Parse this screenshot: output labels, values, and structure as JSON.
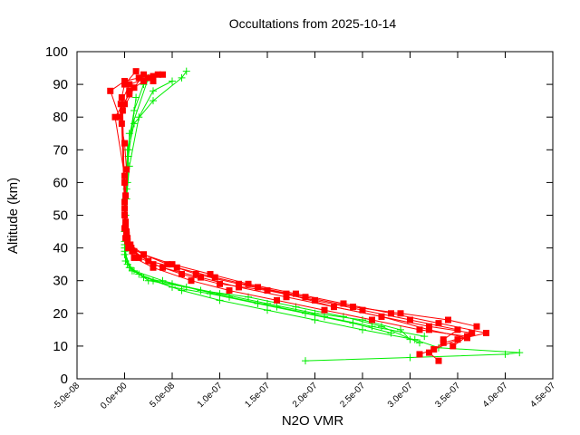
{
  "chart_data": {
    "type": "line",
    "title": "Occultations from 2025-10-14",
    "xlabel": "N2O VMR",
    "ylabel": "Altitude (km)",
    "xlim": [
      -5e-08,
      4.5e-07
    ],
    "ylim": [
      0,
      100
    ],
    "grid": false,
    "legend": "none",
    "xticks": [
      -5e-08,
      0,
      5e-08,
      1e-07,
      1.5e-07,
      2e-07,
      2.5e-07,
      3e-07,
      3.5e-07,
      4e-07,
      4.5e-07
    ],
    "xtick_labels": [
      "-5.0e-08",
      "0.0e+00",
      "5.0e-08",
      "1.0e-07",
      "1.5e-07",
      "2.0e-07",
      "2.5e-07",
      "3.0e-07",
      "3.5e-07",
      "4.0e-07",
      "4.5e-07"
    ],
    "yticks": [
      0,
      10,
      20,
      30,
      40,
      50,
      60,
      70,
      80,
      90,
      100
    ],
    "ytick_labels": [
      "0",
      "10",
      "20",
      "30",
      "40",
      "50",
      "60",
      "70",
      "80",
      "90",
      "100"
    ],
    "series": [
      {
        "color": "#00ee00",
        "marker": "plus",
        "profiles": [
          {
            "x": [
              1.9e-07,
              3e-07,
              4e-07,
              4.15e-07,
              3.3e-07,
              3.05e-07,
              2.5e-07,
              2e-07,
              1.5e-07,
              1e-07,
              6e-08,
              3e-08,
              8e-09,
              1e-09,
              0.0,
              0.0,
              1e-09,
              2e-09,
              3e-09,
              4e-09,
              1e-08,
              3e-08,
              6e-08,
              6.5e-08
            ],
            "y": [
              5.5,
              6.5,
              7.5,
              8.0,
              9.5,
              12,
              15,
              18,
              21,
              24,
              27,
              30,
              33,
              36,
              40,
              45,
              50,
              55,
              60,
              70,
              78,
              85,
              92,
              94
            ]
          },
          {
            "x": [
              3e-07,
              2.9e-07,
              2.5e-07,
              2e-07,
              1.5e-07,
              1e-07,
              5e-08,
              2e-08,
              5e-09,
              0.0,
              1e-09,
              2e-09,
              5e-09,
              1.5e-08,
              3e-08,
              5e-08
            ],
            "y": [
              12,
              15,
              18,
              20,
              23,
              26,
              29,
              31,
              34,
              38,
              45,
              55,
              65,
              80,
              88,
              91
            ]
          },
          {
            "x": [
              3.1e-07,
              2.7e-07,
              2.3e-07,
              1.8e-07,
              1.3e-07,
              8e-08,
              4e-08,
              1e-08,
              1e-09,
              0.0,
              1e-09,
              3e-09,
              1e-08,
              2e-08
            ],
            "y": [
              11,
              16,
              19,
              22,
              25,
              27,
              30,
              33,
              36,
              42,
              55,
              70,
              82,
              90
            ]
          },
          {
            "x": [
              2.8e-07,
              2.4e-07,
              1.9e-07,
              1.4e-07,
              9e-08,
              5e-08,
              1.5e-08,
              3e-09,
              0.0,
              2e-09,
              5e-09,
              2.5e-08
            ],
            "y": [
              14,
              17,
              20,
              23,
              26,
              28,
              32,
              35,
              41,
              58,
              75,
              92
            ]
          },
          {
            "x": [
              3.15e-07,
              2.6e-07,
              2.1e-07,
              1.6e-07,
              1.1e-07,
              6.5e-08,
              2.5e-08,
              6e-09,
              0.0,
              1e-09,
              4e-09,
              1.2e-08
            ],
            "y": [
              13,
              16,
              19,
              22,
              25,
              28,
              30,
              34,
              39,
              50,
              68,
              86
            ]
          }
        ]
      },
      {
        "color": "#ff0000",
        "marker": "square",
        "profiles": [
          {
            "x": [
              3.3e-07,
              3.2e-07,
              3.35e-07,
              3.6e-07,
              3.1e-07,
              2.6e-07,
              2.1e-07,
              1.6e-07,
              1.1e-07,
              7e-08,
              3e-08,
              1e-08,
              4e-09,
              1e-09,
              0.0,
              0.0,
              1e-09,
              2e-09,
              0.0,
              -5e-09,
              0.0,
              5e-09,
              2e-08,
              3.5e-08
            ],
            "y": [
              5.5,
              8,
              11,
              13,
              15,
              18,
              21,
              24,
              27,
              30,
              34,
              37,
              40,
              43,
              46,
              50,
              56,
              64,
              72,
              80,
              84,
              88,
              91,
              93
            ]
          },
          {
            "x": [
              3.1e-07,
              3.25e-07,
              3.5e-07,
              3.8e-07,
              3.3e-07,
              2.8e-07,
              2.3e-07,
              1.8e-07,
              1.3e-07,
              9e-08,
              5e-08,
              2e-08,
              6e-09,
              2e-09,
              1e-09,
              0.0,
              -3e-09,
              -1.5e-08,
              0.0,
              1.5e-08,
              3e-08,
              4e-08
            ],
            "y": [
              7.5,
              9,
              12,
              14,
              17,
              20,
              23,
              26,
              29,
              32,
              35,
              38,
              41,
              44,
              47,
              52,
              78,
              88,
              91,
              92,
              92.5,
              93
            ]
          },
          {
            "x": [
              3.45e-07,
              3.65e-07,
              3.2e-07,
              2.7e-07,
              2.2e-07,
              1.7e-07,
              1.2e-07,
              8e-08,
              4e-08,
              1.5e-08,
              5e-09,
              2e-09,
              0.0,
              0.0,
              -4e-09,
              5e-09,
              2.5e-08,
              3e-08
            ],
            "y": [
              10,
              14,
              16,
              19,
              22,
              25,
              28,
              31,
              34,
              37,
              41,
              45,
              50,
              60,
              84,
              90,
              92,
              91
            ]
          },
          {
            "x": [
              3.35e-07,
              3.5e-07,
              3e-07,
              2.5e-07,
              2e-07,
              1.5e-07,
              1e-07,
              6e-08,
              3e-08,
              1e-08,
              3e-09,
              1e-09,
              0.0,
              -2e-09,
              1e-08,
              2e-08
            ],
            "y": [
              12,
              15,
              18,
              21,
              24,
              27,
              29,
              32,
              35,
              39,
              42,
              46,
              54,
              82,
              89,
              93
            ]
          },
          {
            "x": [
              3.7e-07,
              3.4e-07,
              2.9e-07,
              2.4e-07,
              1.9e-07,
              1.4e-07,
              9.5e-08,
              5.5e-08,
              2.5e-08,
              8e-09,
              3e-09,
              1e-09,
              -3e-09,
              0.0,
              1.2e-08
            ],
            "y": [
              16,
              18,
              20,
              22,
              25,
              28,
              31,
              34,
              36,
              39,
              43,
              48,
              86,
              90,
              94
            ]
          },
          {
            "x": [
              3.6e-07,
              3.2e-07,
              2.7e-07,
              2.2e-07,
              1.7e-07,
              1.2e-07,
              7.5e-08,
              4.5e-08,
              2e-08,
              7e-09,
              2e-09,
              0.0,
              -1e-08,
              5e-09
            ],
            "y": [
              12.5,
              15,
              19,
              22,
              26,
              29,
              32,
              35,
              38,
              40,
              44,
              62,
              80,
              87
            ]
          }
        ]
      }
    ]
  }
}
